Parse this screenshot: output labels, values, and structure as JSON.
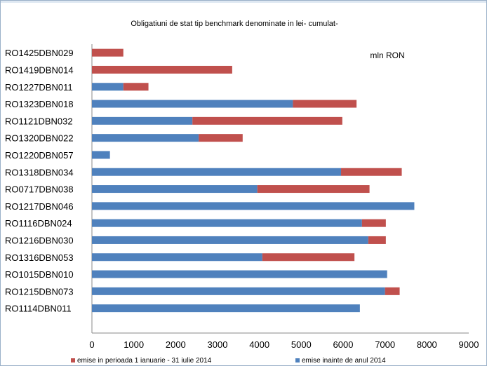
{
  "chart_data": {
    "type": "bar",
    "orientation": "horizontal",
    "stacked": true,
    "title": "Obligatiuni de stat tip benchmark denominate in lei- cumulat-",
    "unit_label": "mln RON",
    "categories": [
      "RO1425DBN029",
      "RO1419DBN014",
      "RO1227DBN011",
      "RO1323DBN018",
      "RO1121DBN032",
      "RO1320DBN022",
      "RO1220DBN057",
      "RO1318DBN034",
      "RO0717DBN038",
      "RO1217DBN046",
      "RO1116DBN024",
      "RO1216DBN030",
      "RO1316DBN053",
      "RO1015DBN010",
      "RO1215DBN073",
      "RO1114DBN011"
    ],
    "series": [
      {
        "name": "emise inainte de anul 2014",
        "color": "#4f81bd",
        "values": [
          0,
          0,
          750,
          4800,
          2400,
          2550,
          430,
          5950,
          3950,
          7700,
          6450,
          6600,
          4070,
          7050,
          7000,
          6400
        ]
      },
      {
        "name": "emise in perioada 1 ianuarie - 31 iulie 2014",
        "color": "#c0504d",
        "values": [
          750,
          3350,
          600,
          1520,
          3580,
          1050,
          0,
          1450,
          2680,
          0,
          570,
          420,
          2200,
          0,
          350,
          0
        ]
      }
    ],
    "xlim": [
      0,
      9000
    ],
    "xticks": [
      "0",
      "1000",
      "2000",
      "3000",
      "4000",
      "5000",
      "6000",
      "7000",
      "8000",
      "9000"
    ],
    "grid": false,
    "legend": {
      "position": "bottom",
      "items": [
        {
          "label": "emise in perioada 1 ianuarie - 31 iulie 2014",
          "color": "#c0504d"
        },
        {
          "label": "emise inainte de anul 2014",
          "color": "#4f81bd"
        }
      ]
    }
  }
}
